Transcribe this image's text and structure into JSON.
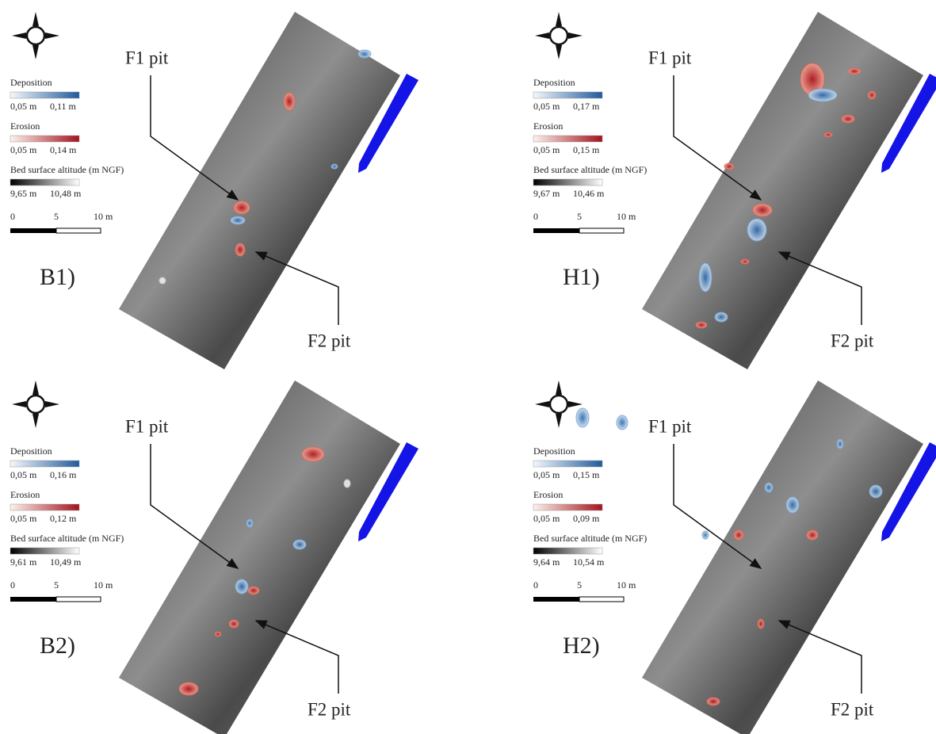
{
  "panels": [
    {
      "label": "B1)",
      "f1": "F1 pit",
      "f2": "F2 pit",
      "legend": {
        "deposition": "Deposition",
        "deposition_min": "0,05 m",
        "deposition_max": "0,11 m",
        "erosion": "Erosion",
        "erosion_min": "0,05 m",
        "erosion_max": "0,14 m",
        "altitude": "Bed surface altitude (m NGF)",
        "altitude_min": "9,65 m",
        "altitude_max": "10,48 m"
      },
      "scale": [
        "0",
        "5",
        "10 m"
      ]
    },
    {
      "label": "H1)",
      "f1": "F1 pit",
      "f2": "F2 pit",
      "legend": {
        "deposition": "Deposition",
        "deposition_min": "0,05 m",
        "deposition_max": "0,17 m",
        "erosion": "Erosion",
        "erosion_min": "0,05 m",
        "erosion_max": "0,15 m",
        "altitude": "Bed surface altitude (m NGF)",
        "altitude_min": "9,67 m",
        "altitude_max": "10,46 m"
      },
      "scale": [
        "0",
        "5",
        "10 m"
      ]
    },
    {
      "label": "B2)",
      "f1": "F1 pit",
      "f2": "F2 pit",
      "legend": {
        "deposition": "Deposition",
        "deposition_min": "0,05 m",
        "deposition_max": "0,16 m",
        "erosion": "Erosion",
        "erosion_min": "0,05 m",
        "erosion_max": "0,12 m",
        "altitude": "Bed surface altitude (m NGF)",
        "altitude_min": "9,61 m",
        "altitude_max": "10,49 m"
      },
      "scale": [
        "0",
        "5",
        "10 m"
      ]
    },
    {
      "label": "H2)",
      "f1": "F1 pit",
      "f2": "F2 pit",
      "legend": {
        "deposition": "Deposition",
        "deposition_min": "0,05 m",
        "deposition_max": "0,15 m",
        "erosion": "Erosion",
        "erosion_min": "0,05 m",
        "erosion_max": "0,09 m",
        "altitude": "Bed surface altitude (m NGF)",
        "altitude_min": "9,64 m",
        "altitude_max": "10,54 m"
      },
      "scale": [
        "0",
        "5",
        "10 m"
      ]
    }
  ]
}
